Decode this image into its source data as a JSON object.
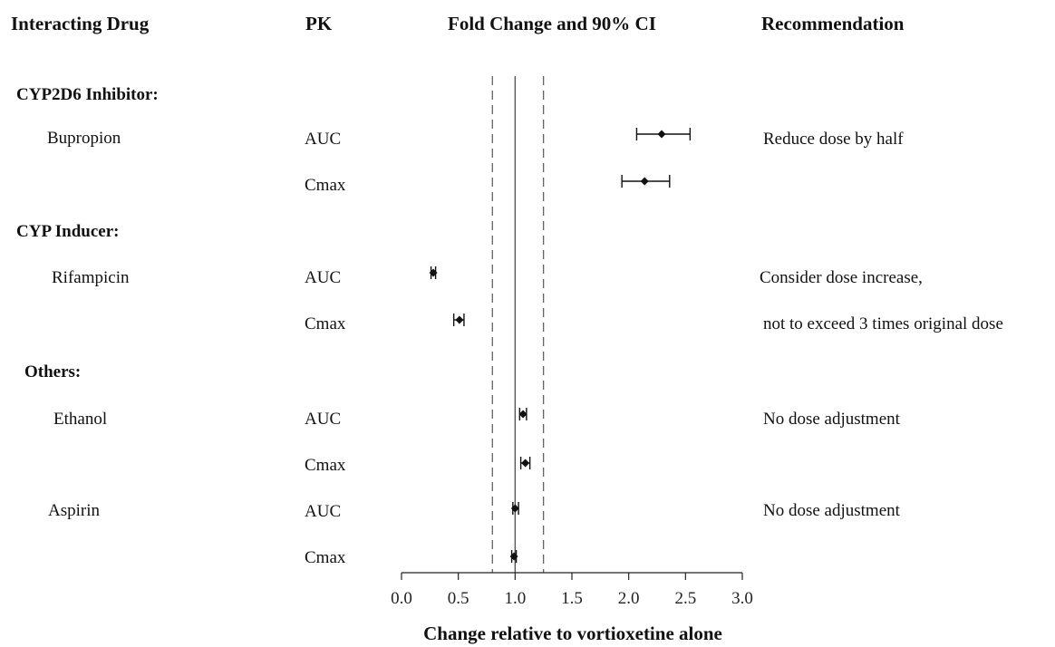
{
  "headers": {
    "interacting_drug": "Interacting Drug",
    "pk": "PK",
    "fold_change": "Fold Change and 90% CI",
    "recommendation": "Recommendation"
  },
  "groups": {
    "cyp2d6": "CYP2D6 Inhibitor:",
    "cyp_inducer": "CYP Inducer:",
    "others": "Others:"
  },
  "drugs": {
    "bupropion": "Bupropion",
    "rifampicin": "Rifampicin",
    "ethanol": "Ethanol",
    "aspirin": "Aspirin"
  },
  "pk_labels": [
    "AUC",
    "Cmax",
    "AUC",
    "Cmax",
    "AUC",
    "Cmax",
    "AUC",
    "Cmax"
  ],
  "recommendations": {
    "bupropion": "Reduce dose by half",
    "rifampicin_line1": "Consider dose increase,",
    "rifampicin_line2": "not to exceed 3 times original dose",
    "ethanol": "No dose adjustment",
    "aspirin": "No dose adjustment"
  },
  "chart_data": {
    "type": "scatter",
    "subtype": "forest_plot",
    "title": "Fold Change and 90% CI",
    "xlabel": "Change relative to vortioxetine alone",
    "xlim": [
      0.0,
      3.0
    ],
    "xticks": [
      "0.0",
      "0.5",
      "1.0",
      "1.5",
      "2.0",
      "2.5",
      "3.0"
    ],
    "reference_line": 1.0,
    "boundary_lines": [
      0.8,
      1.25
    ],
    "rows": [
      {
        "drug": "Bupropion",
        "pk": "AUC",
        "estimate": 2.29,
        "ci": [
          2.07,
          2.54
        ]
      },
      {
        "drug": "Bupropion",
        "pk": "Cmax",
        "estimate": 2.14,
        "ci": [
          1.94,
          2.36
        ]
      },
      {
        "drug": "Rifampicin",
        "pk": "AUC",
        "estimate": 0.28,
        "ci": [
          0.26,
          0.3
        ]
      },
      {
        "drug": "Rifampicin",
        "pk": "Cmax",
        "estimate": 0.51,
        "ci": [
          0.46,
          0.55
        ]
      },
      {
        "drug": "Ethanol",
        "pk": "AUC",
        "estimate": 1.07,
        "ci": [
          1.04,
          1.1
        ]
      },
      {
        "drug": "Ethanol",
        "pk": "Cmax",
        "estimate": 1.09,
        "ci": [
          1.05,
          1.13
        ]
      },
      {
        "drug": "Aspirin",
        "pk": "AUC",
        "estimate": 1.0,
        "ci": [
          0.98,
          1.03
        ]
      },
      {
        "drug": "Aspirin",
        "pk": "Cmax",
        "estimate": 0.99,
        "ci": [
          0.97,
          1.01
        ]
      }
    ]
  }
}
